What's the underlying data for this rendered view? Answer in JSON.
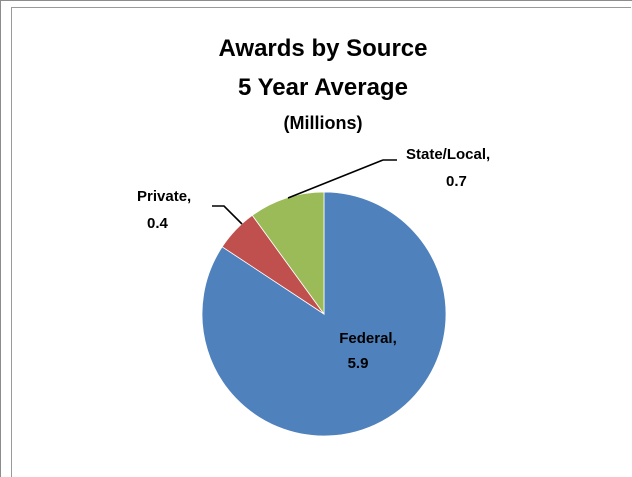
{
  "chart_data": {
    "type": "pie",
    "title_lines": [
      "Awards by Source",
      "5 Year Average",
      "(Millions)"
    ],
    "slices": [
      {
        "label": "Federal,",
        "value_text": "5.9",
        "value": 5.9,
        "color": "#4f81bd"
      },
      {
        "label": "Private,",
        "value_text": "0.4",
        "value": 0.4,
        "color": "#c0504d"
      },
      {
        "label": "State/Local,",
        "value_text": "0.7",
        "value": 0.7,
        "color": "#9bbb59"
      }
    ],
    "legend": "none",
    "data_labels": true
  }
}
